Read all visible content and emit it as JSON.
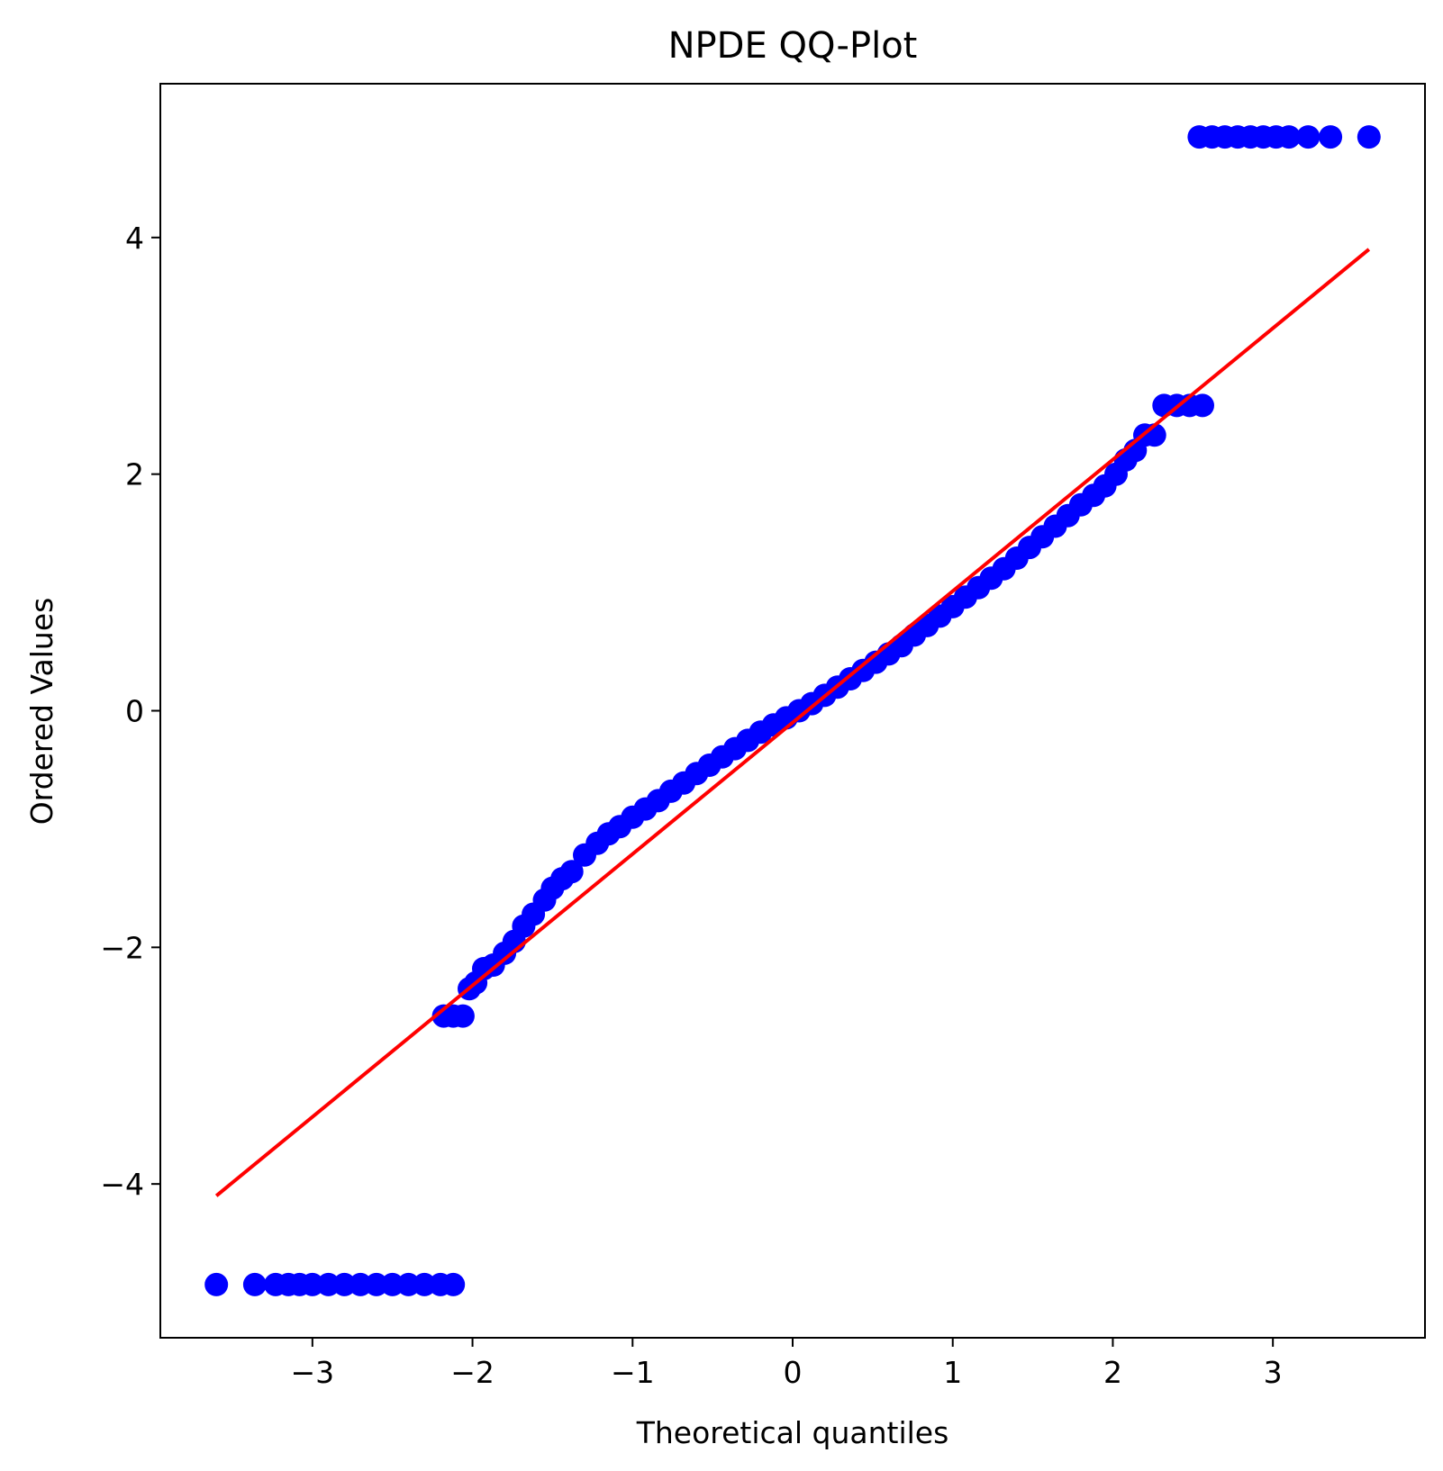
{
  "chart_data": {
    "type": "scatter",
    "title": "NPDE QQ-Plot",
    "xlabel": "Theoretical quantiles",
    "ylabel": "Ordered Values",
    "xlim": [
      -3.95,
      3.95
    ],
    "ylim": [
      -5.3,
      5.3
    ],
    "grid": false,
    "legend": "none",
    "xticks": [
      {
        "value": -3,
        "label": "−3"
      },
      {
        "value": -2,
        "label": "−2"
      },
      {
        "value": -1,
        "label": "−1"
      },
      {
        "value": 0,
        "label": "0"
      },
      {
        "value": 1,
        "label": "1"
      },
      {
        "value": 2,
        "label": "2"
      },
      {
        "value": 3,
        "label": "3"
      }
    ],
    "yticks": [
      {
        "value": -4,
        "label": "−4"
      },
      {
        "value": -2,
        "label": "−2"
      },
      {
        "value": 0,
        "label": "0"
      },
      {
        "value": 2,
        "label": "2"
      },
      {
        "value": 4,
        "label": "4"
      }
    ],
    "colors": {
      "points": "#0000ff",
      "fit_line": "#ff0000",
      "axes": "#000000"
    },
    "series": [
      {
        "name": "data",
        "kind": "scatter",
        "x": [
          -3.6,
          -3.36,
          -3.23,
          -3.15,
          -3.08,
          -3.0,
          -2.9,
          -2.8,
          -2.7,
          -2.6,
          -2.5,
          -2.4,
          -2.3,
          -2.2,
          -2.12,
          -2.18,
          -2.12,
          -2.06,
          -2.02,
          -1.98,
          -1.93,
          -1.87,
          -1.8,
          -1.74,
          -1.68,
          -1.62,
          -1.55,
          -1.5,
          -1.44,
          -1.38,
          -1.3,
          -1.22,
          -1.15,
          -1.08,
          -1.0,
          -0.92,
          -0.84,
          -0.76,
          -0.68,
          -0.6,
          -0.52,
          -0.44,
          -0.36,
          -0.28,
          -0.2,
          -0.12,
          -0.04,
          0.04,
          0.12,
          0.2,
          0.28,
          0.36,
          0.44,
          0.52,
          0.6,
          0.68,
          0.76,
          0.84,
          0.92,
          1.0,
          1.08,
          1.16,
          1.24,
          1.32,
          1.4,
          1.48,
          1.56,
          1.64,
          1.72,
          1.8,
          1.88,
          1.95,
          2.02,
          2.08,
          2.14,
          2.2,
          2.26,
          2.32,
          2.4,
          2.48,
          2.56,
          2.54,
          2.62,
          2.7,
          2.78,
          2.86,
          2.94,
          3.02,
          3.1,
          3.22,
          3.36,
          3.6
        ],
        "y": [
          -4.85,
          -4.85,
          -4.85,
          -4.85,
          -4.85,
          -4.85,
          -4.85,
          -4.85,
          -4.85,
          -4.85,
          -4.85,
          -4.85,
          -4.85,
          -4.85,
          -4.85,
          -2.58,
          -2.58,
          -2.58,
          -2.35,
          -2.3,
          -2.18,
          -2.15,
          -2.05,
          -1.95,
          -1.82,
          -1.72,
          -1.6,
          -1.5,
          -1.42,
          -1.36,
          -1.22,
          -1.12,
          -1.04,
          -0.98,
          -0.9,
          -0.83,
          -0.76,
          -0.68,
          -0.61,
          -0.53,
          -0.46,
          -0.39,
          -0.32,
          -0.25,
          -0.18,
          -0.12,
          -0.06,
          0.0,
          0.06,
          0.13,
          0.2,
          0.27,
          0.34,
          0.41,
          0.48,
          0.55,
          0.64,
          0.72,
          0.8,
          0.88,
          0.96,
          1.04,
          1.12,
          1.2,
          1.29,
          1.38,
          1.47,
          1.56,
          1.65,
          1.74,
          1.82,
          1.9,
          2.0,
          2.12,
          2.2,
          2.33,
          2.33,
          2.58,
          2.58,
          2.58,
          2.58,
          4.85,
          4.85,
          4.85,
          4.85,
          4.85,
          4.85,
          4.85,
          4.85,
          4.85,
          4.85,
          4.85
        ]
      },
      {
        "name": "fit",
        "kind": "line",
        "x": [
          -3.6,
          3.6
        ],
        "y": [
          -4.1,
          3.9
        ]
      }
    ]
  }
}
